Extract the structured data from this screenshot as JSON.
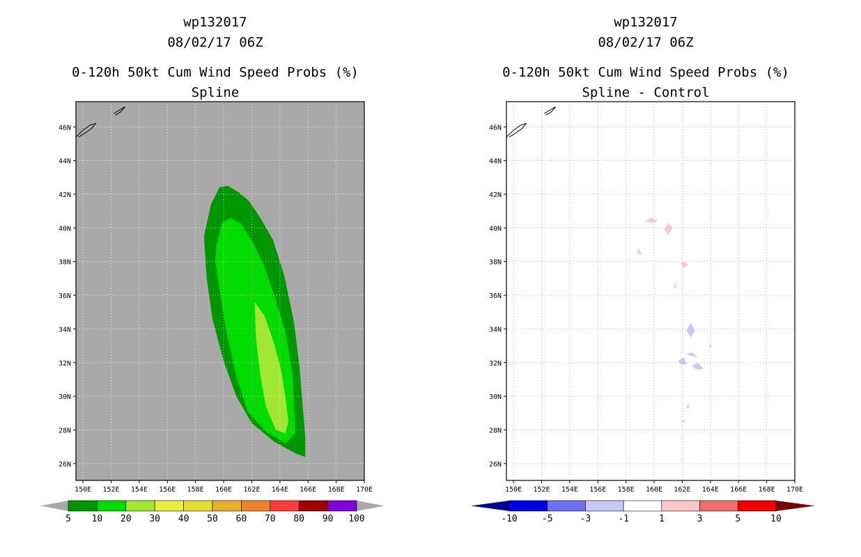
{
  "chart_data": [
    {
      "type": "contour-map",
      "storm_id": "wp132017",
      "datetime": "08/02/17 06Z",
      "title": "0-120h 50kt Cum Wind Speed Probs (%)",
      "subtitle": "Spline",
      "lon_range": [
        149.5,
        170.0
      ],
      "lat_range": [
        25.0,
        47.5
      ],
      "x_ticks": [
        "150E",
        "152E",
        "154E",
        "156E",
        "158E",
        "160E",
        "162E",
        "164E",
        "166E",
        "168E",
        "170E"
      ],
      "x_tick_values": [
        150,
        152,
        154,
        156,
        158,
        160,
        162,
        164,
        166,
        168,
        170
      ],
      "y_ticks": [
        "26N",
        "28N",
        "30N",
        "32N",
        "34N",
        "36N",
        "38N",
        "40N",
        "42N",
        "44N",
        "46N"
      ],
      "y_tick_values": [
        26,
        28,
        30,
        32,
        34,
        36,
        38,
        40,
        42,
        44,
        46
      ],
      "background_color": "#a9a9a9",
      "grid": "dotted",
      "colorbar": {
        "labels": [
          "5",
          "10",
          "20",
          "30",
          "40",
          "50",
          "60",
          "70",
          "80",
          "90",
          "100"
        ],
        "colors": [
          "#009600",
          "#00dc00",
          "#a0e632",
          "#e6f03c",
          "#e6dc32",
          "#e6af2d",
          "#f08228",
          "#fa3c3c",
          "#a00000",
          "#8200dc"
        ],
        "end_color": "#a9a9a9"
      },
      "regions": [
        {
          "level": "5-10",
          "color": "#009600",
          "polygon": [
            [
              158.6,
              39.5
            ],
            [
              159.1,
              41.4
            ],
            [
              159.7,
              42.4
            ],
            [
              160.3,
              42.5
            ],
            [
              161.1,
              42.1
            ],
            [
              161.8,
              41.6
            ],
            [
              162.6,
              40.6
            ],
            [
              163.5,
              39.3
            ],
            [
              164.3,
              37.2
            ],
            [
              165.0,
              34.4
            ],
            [
              165.4,
              31.7
            ],
            [
              165.6,
              29.6
            ],
            [
              165.8,
              27.6
            ],
            [
              165.8,
              26.4
            ],
            [
              165.1,
              26.6
            ],
            [
              163.6,
              27.3
            ],
            [
              162.0,
              28.4
            ],
            [
              160.9,
              30.0
            ],
            [
              160.0,
              32.1
            ],
            [
              159.2,
              34.6
            ],
            [
              158.8,
              37.0
            ]
          ]
        },
        {
          "level": "10-20",
          "color": "#00dc00",
          "polygon": [
            [
              159.5,
              39.0
            ],
            [
              159.9,
              40.3
            ],
            [
              160.5,
              40.6
            ],
            [
              161.3,
              40.2
            ],
            [
              162.1,
              39.1
            ],
            [
              162.8,
              37.9
            ],
            [
              163.6,
              36.0
            ],
            [
              164.4,
              33.8
            ],
            [
              164.9,
              31.3
            ],
            [
              165.0,
              29.5
            ],
            [
              165.1,
              27.8
            ],
            [
              164.4,
              27.2
            ],
            [
              163.0,
              27.9
            ],
            [
              161.7,
              29.1
            ],
            [
              160.9,
              31.2
            ],
            [
              160.2,
              33.8
            ],
            [
              159.7,
              36.4
            ],
            [
              159.4,
              38.1
            ]
          ]
        },
        {
          "level": "20-30",
          "color": "#a0e632",
          "polygon": [
            [
              162.2,
              35.6
            ],
            [
              162.9,
              34.8
            ],
            [
              163.6,
              33.1
            ],
            [
              164.1,
              31.5
            ],
            [
              164.4,
              29.9
            ],
            [
              164.6,
              28.5
            ],
            [
              164.4,
              27.8
            ],
            [
              163.7,
              28.0
            ],
            [
              163.0,
              29.4
            ],
            [
              162.6,
              31.3
            ],
            [
              162.3,
              33.4
            ]
          ]
        }
      ],
      "colorbar_end_labels": []
    },
    {
      "type": "contour-map",
      "storm_id": "wp132017",
      "datetime": "08/02/17 06Z",
      "title": "0-120h 50kt Cum Wind Speed Probs (%)",
      "subtitle": "Spline - Control",
      "lon_range": [
        149.5,
        170.0
      ],
      "lat_range": [
        25.0,
        47.5
      ],
      "x_ticks": [
        "150E",
        "152E",
        "154E",
        "156E",
        "158E",
        "160E",
        "162E",
        "164E",
        "166E",
        "168E",
        "170E"
      ],
      "x_tick_values": [
        150,
        152,
        154,
        156,
        158,
        160,
        162,
        164,
        166,
        168,
        170
      ],
      "y_ticks": [
        "26N",
        "28N",
        "30N",
        "32N",
        "34N",
        "36N",
        "38N",
        "40N",
        "42N",
        "44N",
        "46N"
      ],
      "y_tick_values": [
        26,
        28,
        30,
        32,
        34,
        36,
        38,
        40,
        42,
        44,
        46
      ],
      "background_color": "#ffffff",
      "grid": "dotted",
      "colorbar": {
        "labels": [
          "-10",
          "-5",
          "-3",
          "-1",
          "1",
          "3",
          "5",
          "10"
        ],
        "colors": [
          "#0000e6",
          "#6e6ef0",
          "#c8c8f8",
          "#ffffff",
          "#fac8c8",
          "#f06e6e",
          "#f00000"
        ],
        "end_left_color": "#000096",
        "end_right_color": "#780000"
      },
      "regions": [
        {
          "level": "1 to 3",
          "color": "#fac8c8",
          "polygon": [
            [
              160.7,
              39.9
            ],
            [
              161.0,
              40.3
            ],
            [
              161.3,
              40.0
            ],
            [
              161.0,
              39.6
            ]
          ]
        },
        {
          "level": "1 to 3",
          "color": "#fac8c8",
          "polygon": [
            [
              159.4,
              40.4
            ],
            [
              159.8,
              40.6
            ],
            [
              160.3,
              40.4
            ],
            [
              159.8,
              40.3
            ]
          ]
        },
        {
          "level": "1 to 3",
          "color": "#fac8c8",
          "polygon": [
            [
              158.8,
              38.5
            ],
            [
              158.9,
              38.8
            ],
            [
              159.1,
              38.4
            ]
          ]
        },
        {
          "level": "1 to 3",
          "color": "#fac8c8",
          "polygon": [
            [
              161.9,
              37.9
            ],
            [
              162.2,
              38.0
            ],
            [
              162.4,
              37.8
            ],
            [
              162.1,
              37.6
            ]
          ]
        },
        {
          "level": "1 to 3",
          "color": "#fac8c8",
          "polygon": [
            [
              161.4,
              36.5
            ],
            [
              161.5,
              36.8
            ],
            [
              161.6,
              36.4
            ]
          ]
        },
        {
          "level": "1 to 3",
          "color": "#fac8c8",
          "polygon": [
            [
              163.9,
              32.9
            ],
            [
              164.0,
              33.1
            ],
            [
              164.1,
              32.9
            ]
          ]
        },
        {
          "level": "1 to 3",
          "color": "#fac8c8",
          "polygon": [
            [
              162.3,
              29.3
            ],
            [
              162.4,
              29.6
            ],
            [
              162.5,
              29.3
            ]
          ]
        },
        {
          "level": "1 to 3",
          "color": "#fac8c8",
          "polygon": [
            [
              161.9,
              28.5
            ],
            [
              162.1,
              28.6
            ],
            [
              162.2,
              28.4
            ]
          ]
        },
        {
          "level": "-3 to -1",
          "color": "#c8c8f8",
          "polygon": [
            [
              162.3,
              33.9
            ],
            [
              162.6,
              34.4
            ],
            [
              162.9,
              33.9
            ],
            [
              162.6,
              33.5
            ]
          ]
        },
        {
          "level": "-3 to -1",
          "color": "#c8c8f8",
          "polygon": [
            [
              161.7,
              32.1
            ],
            [
              162.1,
              32.3
            ],
            [
              162.3,
              31.9
            ],
            [
              161.9,
              31.9
            ]
          ]
        },
        {
          "level": "-3 to -1",
          "color": "#c8c8f8",
          "polygon": [
            [
              162.3,
              32.5
            ],
            [
              162.7,
              32.6
            ],
            [
              163.1,
              32.3
            ],
            [
              162.7,
              32.4
            ]
          ]
        },
        {
          "level": "-3 to -1",
          "color": "#c8c8f8",
          "polygon": [
            [
              162.7,
              31.8
            ],
            [
              163.1,
              32.0
            ],
            [
              163.5,
              31.6
            ],
            [
              163.0,
              31.6
            ]
          ]
        }
      ]
    }
  ],
  "map_outline_color": "#000000",
  "land_outlines": [
    [
      [
        149.5,
        45.4
      ],
      [
        150.0,
        45.8
      ],
      [
        150.5,
        46.1
      ],
      [
        150.9,
        46.2
      ],
      [
        150.6,
        45.9
      ],
      [
        150.1,
        45.6
      ],
      [
        149.7,
        45.4
      ]
    ],
    [
      [
        152.2,
        46.8
      ],
      [
        152.6,
        47.0
      ],
      [
        153.0,
        47.2
      ],
      [
        152.7,
        46.9
      ],
      [
        152.3,
        46.7
      ]
    ]
  ]
}
